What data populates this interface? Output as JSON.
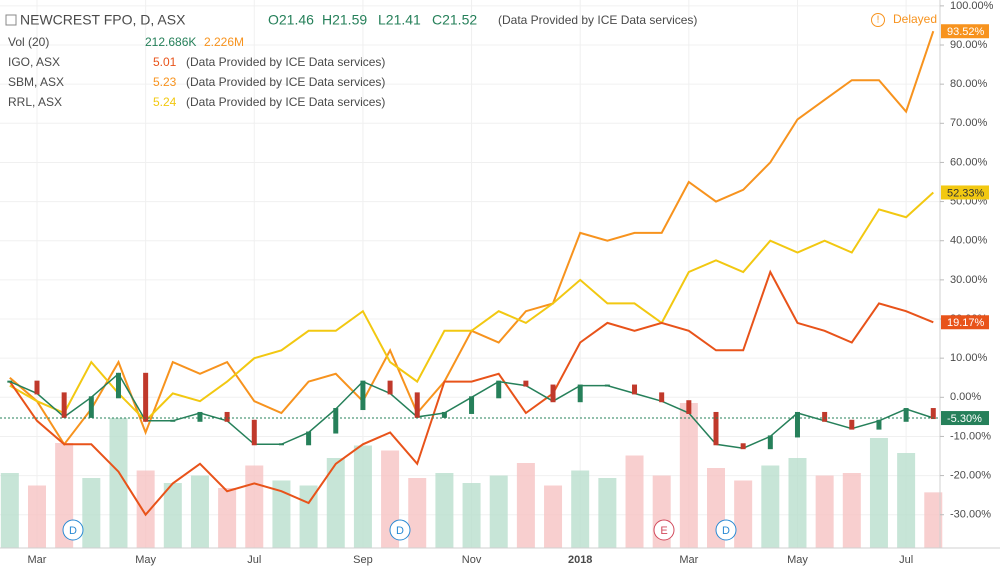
{
  "header": {
    "title": "NEWCREST FPO, D, ASX",
    "ohlc": [
      "O21.46",
      "H21.59",
      "L21.41",
      "C21.52"
    ],
    "source": "(Data Provided by ICE Data services)",
    "status": "Delayed",
    "volume_label": "Vol (20)",
    "volume_values": [
      "212.686K",
      "2.226M"
    ]
  },
  "events": [
    "D",
    "D",
    "E",
    "D"
  ],
  "chart_data": {
    "type": "line",
    "categories": [
      null,
      "Mar",
      null,
      null,
      null,
      "May",
      null,
      null,
      null,
      "Jul",
      null,
      null,
      null,
      "Sep",
      null,
      null,
      null,
      "Nov",
      null,
      null,
      null,
      "2018",
      null,
      null,
      null,
      "Mar",
      null,
      null,
      null,
      "May",
      null,
      null,
      null,
      "Jul",
      null
    ],
    "ylim": [
      -38.5,
      101.5
    ],
    "yticks": [
      {
        "value": -30,
        "label": "-30.00%"
      },
      {
        "value": -20,
        "label": "-20.00%"
      },
      {
        "value": -10,
        "label": "-10.00%"
      },
      {
        "value": 0,
        "label": "0.00%"
      },
      {
        "value": 10,
        "label": "10.00%"
      },
      {
        "value": 20,
        "label": "20.00%"
      },
      {
        "value": 30,
        "label": "30.00%"
      },
      {
        "value": 40,
        "label": "40.00%"
      },
      {
        "value": 50,
        "label": "50.00%"
      },
      {
        "value": 60,
        "label": "60.00%"
      },
      {
        "value": 70,
        "label": "70.00%"
      },
      {
        "value": 80,
        "label": "80.00%"
      },
      {
        "value": 90,
        "label": "90.00%"
      },
      {
        "value": 100,
        "label": "100.00%"
      }
    ],
    "series": [
      {
        "name": "SBM, ASX",
        "price": "5.23",
        "color": "#f7931e",
        "values": [
          5,
          -1,
          -12,
          -3,
          9,
          -9,
          9,
          6,
          9,
          -1,
          -4,
          4,
          6,
          -1,
          12,
          -4,
          4,
          17,
          14,
          22,
          24,
          42,
          40,
          42,
          42,
          55,
          50,
          53,
          60,
          71,
          76,
          81,
          81,
          73,
          93.52
        ],
        "value_labels": [
          null,
          null,
          null,
          null,
          null,
          null,
          null,
          null,
          null,
          null,
          null,
          null,
          null,
          null,
          null,
          null,
          null,
          null,
          null,
          null,
          null,
          null,
          null,
          null,
          null,
          null,
          null,
          null,
          null,
          null,
          null,
          null,
          null,
          null,
          "93.52%"
        ]
      },
      {
        "name": "RRL, ASX",
        "price": "5.24",
        "color": "#f2c811",
        "values": [
          3,
          -1,
          -4,
          9,
          1,
          -6,
          1,
          -1,
          4,
          10,
          12,
          17,
          17,
          22,
          9,
          4,
          17,
          17,
          22,
          19,
          24,
          30,
          24,
          24,
          19,
          32,
          35,
          32,
          40,
          37,
          40,
          37,
          48,
          46,
          52.33
        ],
        "value_labels": [
          null,
          null,
          null,
          null,
          null,
          null,
          null,
          null,
          null,
          null,
          null,
          null,
          null,
          null,
          null,
          null,
          null,
          null,
          null,
          null,
          null,
          null,
          null,
          null,
          null,
          null,
          null,
          null,
          null,
          null,
          null,
          null,
          null,
          null,
          "52.33%"
        ]
      },
      {
        "name": "IGO, ASX",
        "price": "5.01",
        "color": "#e8531a",
        "values": [
          4,
          -6,
          -12,
          -12,
          -19,
          -30,
          -22,
          -17,
          -24,
          -22,
          -24,
          -27,
          -17,
          -12,
          -9,
          -17,
          4,
          4,
          6,
          -4,
          1,
          14,
          19,
          17,
          19,
          17,
          12,
          12,
          32,
          19,
          17,
          14,
          24,
          22,
          19.17
        ],
        "value_labels": [
          null,
          null,
          null,
          null,
          null,
          null,
          null,
          null,
          null,
          null,
          null,
          null,
          null,
          null,
          null,
          null,
          null,
          null,
          null,
          null,
          null,
          null,
          null,
          null,
          null,
          null,
          null,
          null,
          null,
          null,
          null,
          null,
          null,
          null,
          "19.17%"
        ]
      },
      {
        "name": "NEWCREST FPO",
        "color": "#26805a",
        "values": [
          4,
          1,
          -5,
          0,
          6,
          -6,
          -6,
          -4,
          -6,
          -12,
          -12,
          -9,
          -3,
          4,
          1,
          -5,
          -4,
          0,
          4,
          3,
          -1,
          3,
          3,
          1,
          -1,
          -4,
          -12,
          -13,
          -10,
          -4,
          -6,
          -8,
          -6,
          -3,
          -5.3
        ],
        "value_labels": [
          null,
          null,
          null,
          null,
          null,
          null,
          null,
          null,
          null,
          null,
          null,
          null,
          null,
          null,
          null,
          null,
          null,
          null,
          null,
          null,
          null,
          null,
          null,
          null,
          null,
          null,
          null,
          null,
          null,
          null,
          null,
          null,
          null,
          null,
          "-5.30%"
        ]
      }
    ],
    "volume": {
      "vlim": [
        0,
        12000
      ],
      "values": [
        3000,
        2500,
        4200,
        2800,
        5200,
        3100,
        2600,
        2900,
        2400,
        3300,
        2700,
        2500,
        3600,
        4100,
        3900,
        2800,
        3000,
        2600,
        2900,
        3400,
        2500,
        3100,
        2800,
        3700,
        2900,
        5800,
        3200,
        2700,
        3300,
        3600,
        2900,
        3000,
        4400,
        3800,
        2226
      ]
    }
  }
}
